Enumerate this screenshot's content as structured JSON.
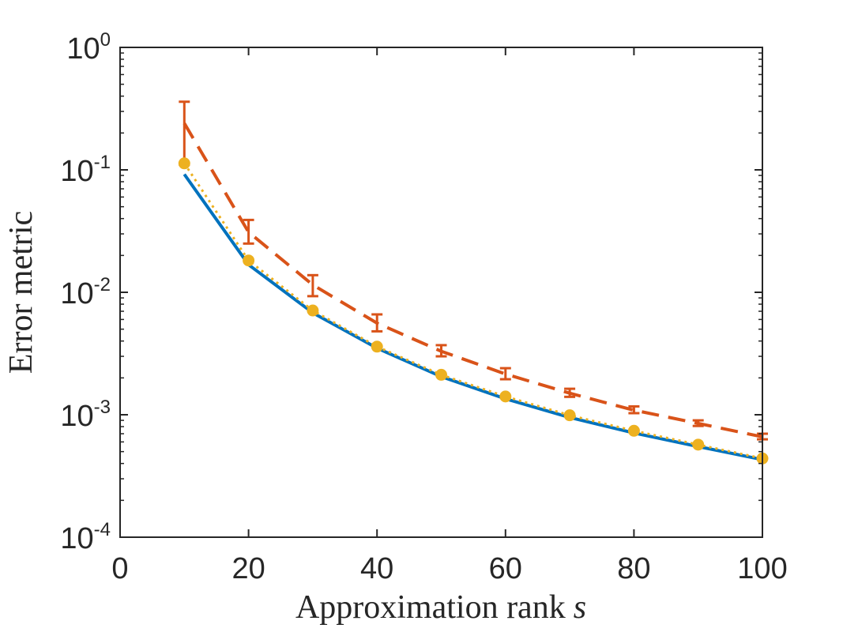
{
  "colors": {
    "background": "#ffffff",
    "axis": "#262626",
    "series1": "#0072BD",
    "series2": "#D95319",
    "series3": "#EDB120"
  },
  "chart_data": {
    "type": "line",
    "xlabel": "Approximation rank",
    "xlabel_var": "s",
    "ylabel": "Error metric",
    "xlim": [
      0,
      100
    ],
    "ylim": [
      0.0001,
      1
    ],
    "yscale": "log",
    "grid": false,
    "box": true,
    "x_ticks": [
      "0",
      "20",
      "40",
      "60",
      "80",
      "100"
    ],
    "x_tick_values": [
      0,
      20,
      40,
      60,
      80,
      100
    ],
    "y_ticks": [
      {
        "base": "10",
        "exp": "0",
        "value": 1
      },
      {
        "base": "10",
        "exp": "-1",
        "value": 0.1
      },
      {
        "base": "10",
        "exp": "-2",
        "value": 0.01
      },
      {
        "base": "10",
        "exp": "-3",
        "value": 0.001
      },
      {
        "base": "10",
        "exp": "-4",
        "value": 0.0001
      }
    ],
    "x": [
      10,
      20,
      30,
      40,
      50,
      60,
      70,
      80,
      90,
      100
    ],
    "series": [
      {
        "style": "solid",
        "color": "#0072BD",
        "values": [
          0.092,
          0.0168,
          0.0068,
          0.0035,
          0.00205,
          0.00135,
          0.00095,
          0.00071,
          0.00055,
          0.00043
        ]
      },
      {
        "style": "dashed",
        "color": "#D95319",
        "values": [
          0.24,
          0.031,
          0.0115,
          0.0056,
          0.0033,
          0.00215,
          0.0015,
          0.00109,
          0.00085,
          0.00066
        ],
        "error_low": [
          0.11,
          0.025,
          0.0093,
          0.0048,
          0.003,
          0.00195,
          0.0014,
          0.00103,
          0.00081,
          0.00063
        ],
        "error_high": [
          0.36,
          0.039,
          0.0138,
          0.0066,
          0.0037,
          0.0024,
          0.00163,
          0.00117,
          0.0009,
          0.0007
        ]
      },
      {
        "style": "dotted",
        "color": "#EDB120",
        "marker": "circle",
        "values": [
          0.113,
          0.0182,
          0.0071,
          0.0036,
          0.00212,
          0.00141,
          0.00099,
          0.00074,
          0.00057,
          0.00044
        ]
      }
    ]
  }
}
